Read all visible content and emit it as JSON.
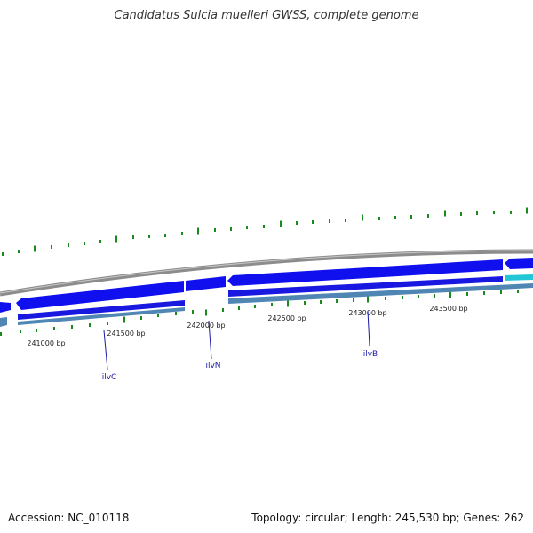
{
  "title": "Candidatus Sulcia muelleri GWSS, complete genome",
  "footer": {
    "accession": "Accession: NC_010118",
    "summary": "Topology: circular; Length: 245,530 bp; Genes: 262"
  },
  "colors": {
    "backbone": "#8c8c8c",
    "gene_forward": "#1010ee",
    "gene_reverse": "#1818e0",
    "gene_cyan": "#22c6d6",
    "cds_bar": "#4f86b4",
    "gc_tick": "#1a8a1a",
    "label_line": "#1a1aa6"
  },
  "bp_ticks": [
    {
      "label": "241000 bp"
    },
    {
      "label": "241500 bp"
    },
    {
      "label": "242000 bp"
    },
    {
      "label": "242500 bp"
    },
    {
      "label": "243000 bp"
    },
    {
      "label": "243500 bp"
    }
  ],
  "gene_labels": [
    {
      "name": "ilvC"
    },
    {
      "name": "ilvN"
    },
    {
      "name": "ilvB"
    }
  ]
}
